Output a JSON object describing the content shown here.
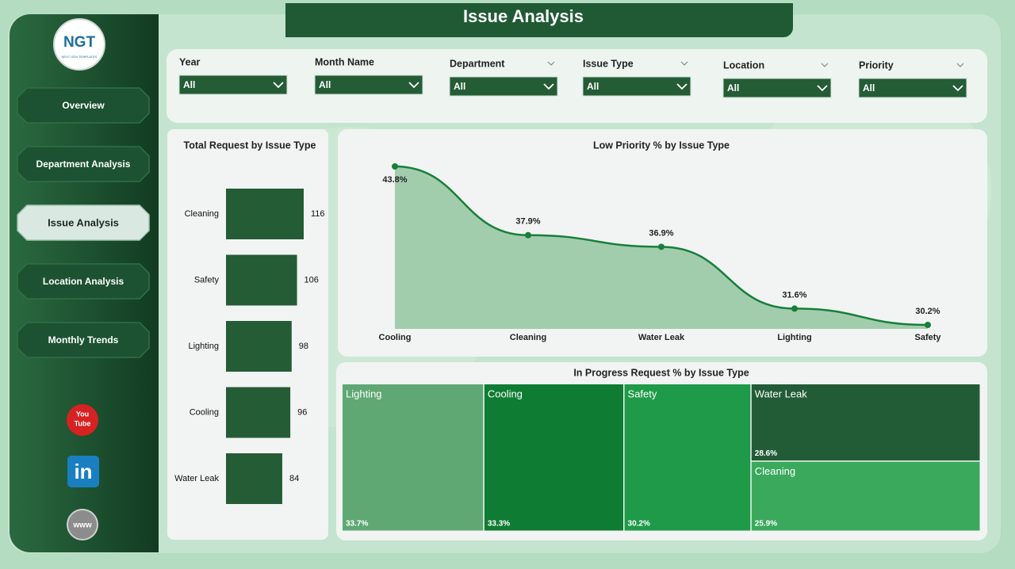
{
  "header": {
    "title": "Issue Analysis",
    "logo": "NGT",
    "logo_sub": "NEXT GEN TEMPLATES"
  },
  "nav": [
    "Overview",
    "Department Analysis",
    "Issue Analysis",
    "Location Analysis",
    "Monthly Trends"
  ],
  "active_nav": 2,
  "social": {
    "youtube": [
      "You",
      "Tube"
    ],
    "linkedin": "in",
    "web": "www"
  },
  "filters": [
    {
      "label": "Year",
      "value": "All"
    },
    {
      "label": "Month Name",
      "value": "All"
    },
    {
      "label": "Department",
      "value": "All"
    },
    {
      "label": "Issue Type",
      "value": "All"
    },
    {
      "label": "Location",
      "value": "All"
    },
    {
      "label": "Priority",
      "value": "All"
    }
  ],
  "chart_data": [
    {
      "type": "bar",
      "orientation": "horizontal",
      "title": "Total Request by Issue Type",
      "categories": [
        "Cleaning",
        "Safety",
        "Lighting",
        "Cooling",
        "Water Leak"
      ],
      "values": [
        116,
        106,
        98,
        96,
        84
      ],
      "color": "#245c36"
    },
    {
      "type": "line",
      "title": "Low Priority % by Issue Type",
      "categories": [
        "Cooling",
        "Cleaning",
        "Water Leak",
        "Lighting",
        "Safety"
      ],
      "values": [
        43.8,
        37.9,
        36.9,
        31.6,
        30.2
      ],
      "value_labels": [
        "43.8%",
        "37.9%",
        "36.9%",
        "31.6%",
        "30.2%"
      ],
      "color": "#17803a",
      "area_color": "#9dcaa9"
    },
    {
      "type": "treemap",
      "title": "In Progress Request % by Issue Type",
      "categories": [
        "Lighting",
        "Cooling",
        "Safety",
        "Water Leak",
        "Cleaning"
      ],
      "values": [
        33.7,
        33.3,
        30.2,
        28.6,
        25.9
      ],
      "value_labels": [
        "33.7%",
        "33.3%",
        "30.2%",
        "28.6%",
        "25.9%"
      ],
      "colors": [
        "#5fa873",
        "#0f7c33",
        "#1f9a48",
        "#225c36",
        "#3aa95c"
      ]
    }
  ]
}
